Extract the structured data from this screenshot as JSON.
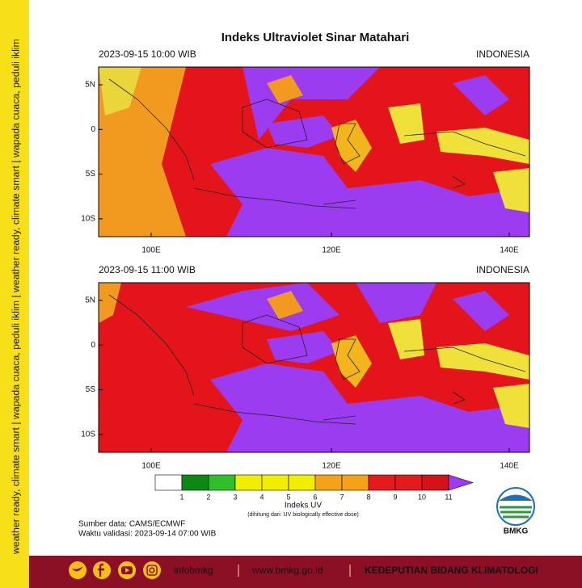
{
  "side_text": "weather ready, climate smart | wapada cuaca, peduli iklim | weather ready, climate smart | wapada cuaca, peduli iklim",
  "title": "Indeks Ultraviolet Sinar Matahari",
  "panels": [
    {
      "time": "2023-09-15  10:00 WIB",
      "region": "INDONESIA",
      "lat_labels": [
        "5N",
        "0",
        "5S",
        "10S"
      ],
      "lon_labels": [
        "100E",
        "120E",
        "140E"
      ]
    },
    {
      "time": "2023-09-15  11:00 WIB",
      "region": "INDONESIA",
      "lat_labels": [
        "5N",
        "0",
        "5S",
        "10S"
      ],
      "lon_labels": [
        "100E",
        "120E",
        "140E"
      ]
    }
  ],
  "colorbar": {
    "labels": [
      "1",
      "2",
      "3",
      "4",
      "5",
      "6",
      "7",
      "8",
      "9",
      "10",
      "11"
    ],
    "title": "Indeks UV",
    "subtitle": "(dihitung dari: UV biologically effective dose)"
  },
  "source": "Sumber data: CAMS/ECMWF",
  "validity": "Waktu validasi: 2023-09-14 07:00 WIB",
  "logo": "BMKG",
  "footer": {
    "handle": "infobmkg",
    "url": "www.bmkg.go.id",
    "department": "KEDEPUTIAN BIDANG KLIMATOLOGI"
  }
}
